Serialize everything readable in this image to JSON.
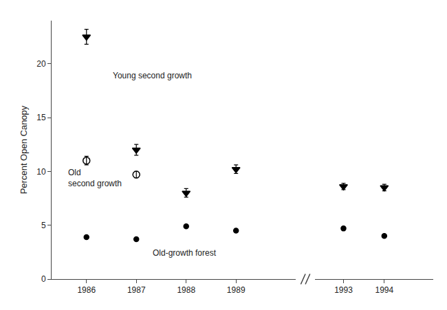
{
  "chart_data": [
    {
      "type": "scatter",
      "ylabel": "Percent Open Canopy",
      "xlim": [
        1985.3,
        1990.2
      ],
      "xticks": [
        1986,
        1987,
        1988,
        1989
      ],
      "ylim": [
        0,
        24
      ],
      "yticks": [
        0,
        5,
        10,
        15,
        20
      ],
      "grid": false,
      "series": [
        {
          "name": "Young second growth",
          "x": [
            1986,
            1987,
            1988,
            1989
          ],
          "values": [
            22.5,
            12.0,
            8.0,
            10.2
          ],
          "yerr": [
            0.7,
            0.5,
            0.4,
            0.4
          ],
          "marker": "triangle-down",
          "color": "black"
        },
        {
          "name": "Old\nsecond growth",
          "x": [
            1986,
            1987
          ],
          "values": [
            11.0,
            9.7
          ],
          "yerr": [
            0.4,
            0.3
          ],
          "marker": "circle-open",
          "color": "black"
        },
        {
          "name": "Old-growth forest",
          "x": [
            1986,
            1987,
            1988,
            1989
          ],
          "values": [
            3.9,
            3.7,
            4.9,
            4.5
          ],
          "marker": "circle",
          "color": "black"
        }
      ],
      "annotations": [
        {
          "text": "Young second growth",
          "x": 1986.5,
          "y": 19.5
        },
        {
          "text": "Old\nsecond growth",
          "x": 1985.6,
          "y": 10.5
        },
        {
          "text": "Old-growth forest",
          "x": 1987.3,
          "y": 3.0
        }
      ]
    },
    {
      "type": "scatter",
      "xlim": [
        1992.3,
        1995.2
      ],
      "xticks": [
        1993,
        1994
      ],
      "ylim": [
        0,
        24
      ],
      "tick_labels": "x",
      "grid": false,
      "series": [
        {
          "name": "Young second growth",
          "x": [
            1993,
            1994
          ],
          "values": [
            8.6,
            8.5
          ],
          "yerr": [
            0.3,
            0.3
          ],
          "marker": "triangle-down",
          "color": "black"
        },
        {
          "name": "Old-growth forest",
          "x": [
            1993,
            1994
          ],
          "values": [
            4.7,
            4.0
          ],
          "marker": "circle",
          "color": "black"
        }
      ]
    }
  ]
}
